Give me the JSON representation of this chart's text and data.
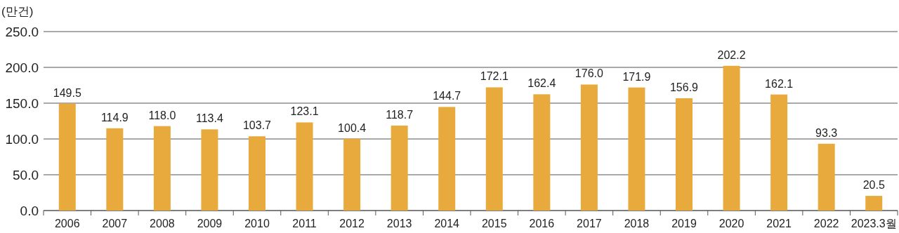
{
  "chart_data": {
    "type": "bar",
    "ylabel": "(만건)",
    "categories": [
      "2006",
      "2007",
      "2008",
      "2009",
      "2010",
      "2011",
      "2012",
      "2013",
      "2014",
      "2015",
      "2016",
      "2017",
      "2018",
      "2019",
      "2020",
      "2021",
      "2022",
      "2023.3월"
    ],
    "values": [
      149.5,
      114.9,
      118.0,
      113.4,
      103.7,
      123.1,
      100.4,
      118.7,
      144.7,
      172.1,
      162.4,
      176.0,
      171.9,
      156.9,
      202.2,
      162.1,
      93.3,
      20.5
    ],
    "value_labels": [
      "149.5",
      "114.9",
      "118.0",
      "113.4",
      "103.7",
      "123.1",
      "100.4",
      "118.7",
      "144.7",
      "172.1",
      "162.4",
      "176.0",
      "171.9",
      "156.9",
      "202.2",
      "162.1",
      "93.3",
      "20.5"
    ],
    "color": "#e8aa3c",
    "ylim": [
      0,
      250
    ],
    "yticks": [
      {
        "value": 0,
        "label": "0.0"
      },
      {
        "value": 50,
        "label": "50.0"
      },
      {
        "value": 100,
        "label": "100.0"
      },
      {
        "value": 150,
        "label": "150.0"
      },
      {
        "value": 200,
        "label": "200.0"
      },
      {
        "value": 250,
        "label": "250.0"
      }
    ],
    "grid": "y"
  }
}
